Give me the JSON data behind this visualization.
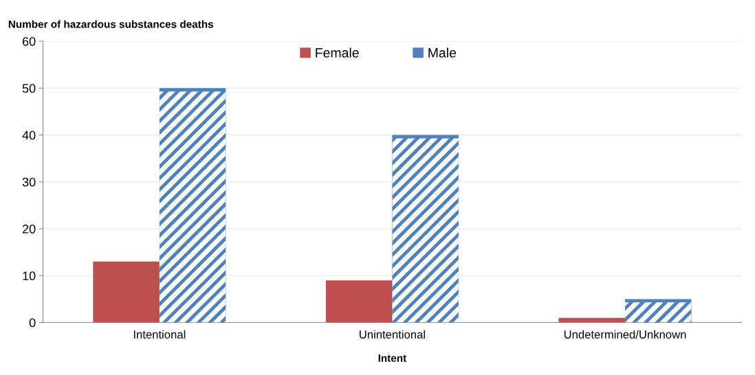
{
  "chart_data": {
    "type": "bar",
    "xlabel": "Intent",
    "ylabel": "Number of hazardous substances deaths",
    "categories": [
      "Intentional",
      "Unintentional",
      "Undetermined/Unknown"
    ],
    "series": [
      {
        "name": "Female",
        "color": "#c0504d",
        "values": [
          13,
          9,
          1
        ]
      },
      {
        "name": "Male",
        "color": "#4f81bd",
        "values": [
          50,
          40,
          5
        ]
      }
    ],
    "ylim": [
      0,
      60
    ],
    "yticks": [
      0,
      10,
      20,
      30,
      40,
      50,
      60
    ],
    "grid": "y",
    "legend": "top"
  }
}
